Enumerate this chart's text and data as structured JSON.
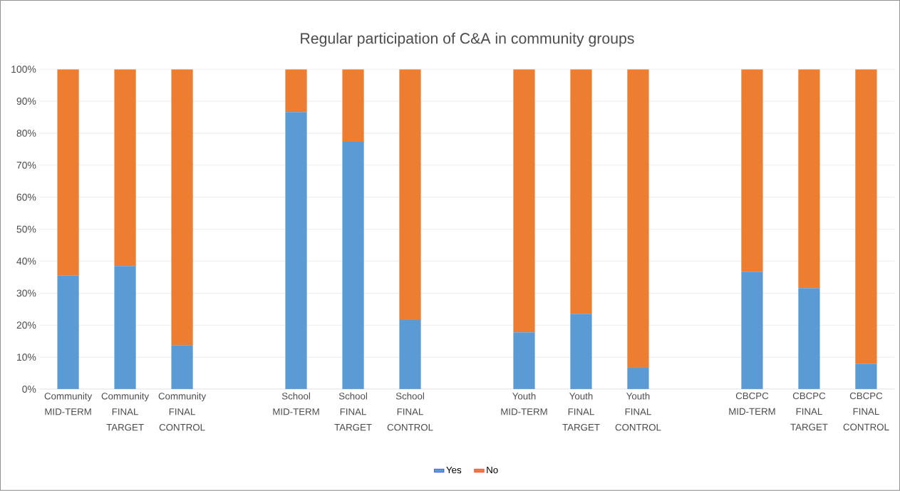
{
  "chart_data": {
    "type": "bar",
    "title": "Regular participation of C&A in community groups",
    "categories": [
      "Community MID-TERM",
      "Community FINAL TARGET",
      "Community FINAL CONTROL",
      null,
      "School MID-TERM",
      "School FINAL TARGET",
      "School FINAL CONTROL",
      null,
      "Youth MID-TERM",
      "Youth FINAL TARGET",
      "Youth FINAL CONTROL",
      null,
      "CBCPC MID-TERM",
      "CBCPC FINAL TARGET",
      "CBCPC FINAL CONTROL"
    ],
    "series": [
      {
        "name": "Yes",
        "color": "#5b9bd5",
        "values": [
          35.6,
          38.5,
          13.8,
          null,
          86.6,
          77.3,
          21.6,
          null,
          17.8,
          23.6,
          6.9,
          null,
          36.7,
          31.6,
          8.0
        ]
      },
      {
        "name": "No",
        "color": "#ed7d31",
        "values": [
          64.4,
          61.5,
          86.2,
          null,
          13.4,
          22.7,
          78.4,
          null,
          82.2,
          76.4,
          93.1,
          null,
          63.3,
          68.4,
          92.0
        ]
      }
    ],
    "stacked": true,
    "ylim": [
      0,
      100
    ],
    "yticks": [
      {
        "value": 0,
        "label": "0%"
      },
      {
        "value": 10,
        "label": "10%"
      },
      {
        "value": 20,
        "label": "20%"
      },
      {
        "value": 30,
        "label": "30%"
      },
      {
        "value": 40,
        "label": "40%"
      },
      {
        "value": 50,
        "label": "50%"
      },
      {
        "value": 60,
        "label": "60%"
      },
      {
        "value": 70,
        "label": "70%"
      },
      {
        "value": 80,
        "label": "80%"
      },
      {
        "value": 90,
        "label": "90%"
      },
      {
        "value": 100,
        "label": "100%"
      }
    ],
    "grid": "y",
    "legend": "bottom"
  }
}
